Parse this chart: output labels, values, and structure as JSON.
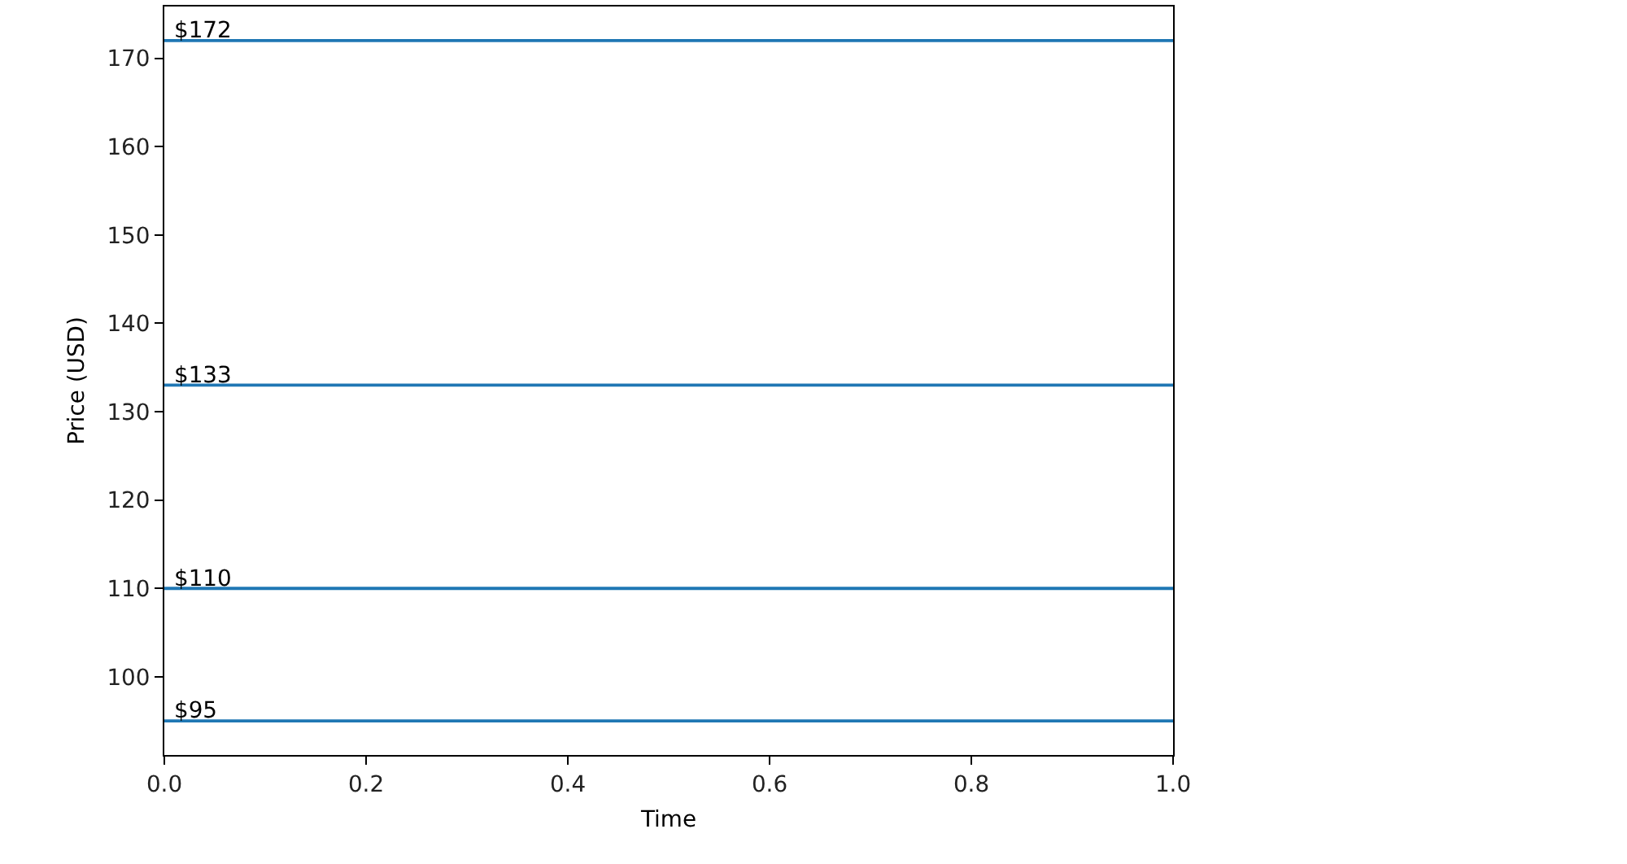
{
  "chart_data": {
    "type": "line",
    "xlabel": "Time",
    "ylabel": "Price (USD)",
    "xlim": [
      0,
      1
    ],
    "xticks": [
      {
        "value": 0,
        "label": "0.0"
      },
      {
        "value": 0.2,
        "label": "0.2"
      },
      {
        "value": 0.4,
        "label": "0.4"
      },
      {
        "value": 0.6,
        "label": "0.6"
      },
      {
        "value": 0.8,
        "label": "0.8"
      },
      {
        "value": 1,
        "label": "1.0"
      }
    ],
    "ylim": [
      91.15,
      175.85
    ],
    "yticks": [
      100,
      110,
      120,
      130,
      140,
      150,
      160,
      170
    ],
    "ref_lines": [
      {
        "axis": "y",
        "value": 172,
        "label": "$172",
        "color": "#1f77b4"
      },
      {
        "axis": "y",
        "value": 133,
        "label": "$133",
        "color": "#1f77b4"
      },
      {
        "axis": "y",
        "value": 110,
        "label": "$110",
        "color": "#1f77b4"
      },
      {
        "axis": "y",
        "value": 95,
        "label": "$95",
        "color": "#1f77b4"
      }
    ]
  }
}
